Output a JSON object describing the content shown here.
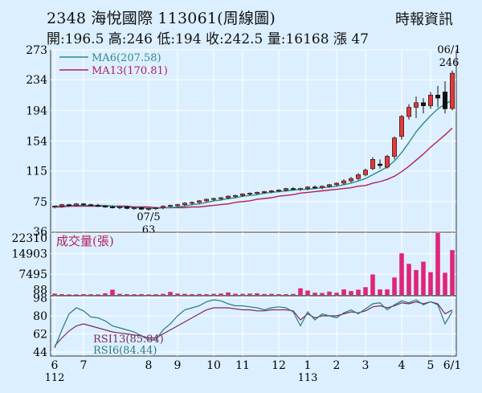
{
  "header": {
    "title": "2348  海悅國際 113061(周線圖)",
    "source": "時報資訊",
    "stats": "開:196.5 高:246 低:194 收:242.5 量:16168 漲 47"
  },
  "colors": {
    "background": "#dcefff",
    "up": "#e23a3a",
    "down": "#111111",
    "ma6": "#2a8a8a",
    "ma13": "#b0205a",
    "volume": "#e0257a",
    "rsi13": "#7a2a5a",
    "rsi6": "#2a7a7a",
    "grid": "#ffffff"
  },
  "chart_data": [
    {
      "type": "candlestick",
      "title": "",
      "yticks": [
        36,
        75,
        115,
        154,
        194,
        234,
        273
      ],
      "ylim": [
        36,
        273
      ],
      "legend": [
        {
          "label": "MA6(207.58)",
          "color": "#2a8a8a"
        },
        {
          "label": "MA13(170.81)",
          "color": "#b0205a"
        }
      ],
      "annotations": [
        {
          "text": "07/5",
          "at": 13
        },
        {
          "text": "63",
          "at": 13
        },
        {
          "text": "06/1",
          "at": 55
        },
        {
          "text": "246",
          "at": 55
        }
      ],
      "candles": [
        [
          68,
          70,
          66,
          69
        ],
        [
          69,
          72,
          67,
          71
        ],
        [
          71,
          72,
          68,
          70
        ],
        [
          70,
          73,
          69,
          72
        ],
        [
          72,
          73,
          70,
          71
        ],
        [
          71,
          72,
          69,
          70
        ],
        [
          70,
          72,
          68,
          69
        ],
        [
          69,
          70,
          67,
          68
        ],
        [
          68,
          70,
          66,
          67
        ],
        [
          67,
          69,
          65,
          68
        ],
        [
          68,
          69,
          65,
          66
        ],
        [
          66,
          68,
          64,
          67
        ],
        [
          67,
          68,
          64,
          65
        ],
        [
          65,
          67,
          63,
          66
        ],
        [
          66,
          68,
          64,
          67
        ],
        [
          67,
          70,
          65,
          69
        ],
        [
          69,
          71,
          67,
          70
        ],
        [
          70,
          72,
          68,
          71
        ],
        [
          71,
          74,
          69,
          73
        ],
        [
          73,
          75,
          71,
          74
        ],
        [
          74,
          77,
          72,
          76
        ],
        [
          76,
          79,
          74,
          78
        ],
        [
          78,
          80,
          76,
          79
        ],
        [
          79,
          81,
          77,
          80
        ],
        [
          80,
          83,
          78,
          82
        ],
        [
          82,
          84,
          80,
          83
        ],
        [
          83,
          86,
          81,
          85
        ],
        [
          85,
          87,
          83,
          86
        ],
        [
          86,
          88,
          84,
          87
        ],
        [
          87,
          89,
          85,
          88
        ],
        [
          88,
          90,
          86,
          89
        ],
        [
          89,
          91,
          87,
          90
        ],
        [
          90,
          93,
          88,
          92
        ],
        [
          92,
          94,
          90,
          91
        ],
        [
          91,
          93,
          89,
          92
        ],
        [
          92,
          95,
          90,
          94
        ],
        [
          94,
          96,
          92,
          93
        ],
        [
          93,
          96,
          91,
          95
        ],
        [
          95,
          98,
          93,
          97
        ],
        [
          97,
          100,
          95,
          99
        ],
        [
          99,
          104,
          97,
          102
        ],
        [
          102,
          107,
          100,
          105
        ],
        [
          105,
          112,
          103,
          110
        ],
        [
          110,
          118,
          108,
          116
        ],
        [
          118,
          133,
          116,
          130
        ],
        [
          124,
          130,
          118,
          122
        ],
        [
          120,
          136,
          118,
          134
        ],
        [
          134,
          160,
          130,
          158
        ],
        [
          160,
          188,
          156,
          186
        ],
        [
          186,
          202,
          182,
          198
        ],
        [
          198,
          212,
          184,
          204
        ],
        [
          204,
          210,
          190,
          200
        ],
        [
          200,
          218,
          196,
          214
        ],
        [
          214,
          226,
          198,
          210
        ],
        [
          218,
          232,
          190,
          196
        ],
        [
          196.5,
          246,
          194,
          242.5
        ]
      ],
      "ma6": [
        69,
        69,
        70,
        70,
        70,
        70,
        70,
        70,
        69,
        68,
        68,
        67,
        67,
        66,
        66,
        67,
        67,
        68,
        69,
        71,
        72,
        74,
        76,
        77,
        79,
        80,
        82,
        83,
        84,
        86,
        87,
        88,
        89,
        90,
        91,
        91,
        92,
        93,
        94,
        95,
        97,
        99,
        102,
        105,
        110,
        115,
        120,
        128,
        139,
        152,
        166,
        177,
        187,
        196,
        202,
        207.58
      ],
      "ma13": [
        68,
        68,
        69,
        69,
        69,
        69,
        69,
        69,
        69,
        69,
        69,
        68,
        68,
        68,
        67,
        67,
        67,
        67,
        67,
        68,
        68,
        69,
        70,
        71,
        72,
        74,
        75,
        76,
        78,
        79,
        80,
        82,
        83,
        84,
        86,
        87,
        88,
        89,
        90,
        91,
        92,
        93,
        95,
        96,
        99,
        101,
        104,
        108,
        114,
        121,
        129,
        137,
        146,
        154,
        162,
        170.81
      ]
    },
    {
      "type": "bar",
      "title": "成交量(張)",
      "yticks": [
        88,
        7495,
        14903,
        22310
      ],
      "ylim": [
        0,
        22310
      ],
      "values": [
        500,
        300,
        200,
        200,
        300,
        250,
        200,
        600,
        1900,
        400,
        300,
        250,
        300,
        200,
        250,
        400,
        1100,
        500,
        400,
        300,
        350,
        300,
        400,
        500,
        900,
        450,
        400,
        500,
        600,
        350,
        400,
        300,
        300,
        350,
        2400,
        1600,
        800,
        700,
        1200,
        800,
        2000,
        1400,
        1900,
        2800,
        7400,
        2000,
        2000,
        6300,
        15000,
        11200,
        9000,
        12000,
        8200,
        22310,
        8000,
        16168
      ]
    },
    {
      "type": "line",
      "title": "",
      "yticks": [
        44,
        62,
        80,
        98
      ],
      "ylim": [
        40,
        100
      ],
      "legend": [
        {
          "label": "RSI13(85.84)",
          "color": "#7a2a5a"
        },
        {
          "label": "RSI6(84.44)",
          "color": "#2a7a7a"
        }
      ],
      "xticks": [
        {
          "label": "6",
          "at": 0
        },
        {
          "label": "7",
          "at": 4
        },
        {
          "label": "8",
          "at": 13
        },
        {
          "label": "9",
          "at": 17
        },
        {
          "label": "10",
          "at": 22
        },
        {
          "label": "11",
          "at": 26
        },
        {
          "label": "12",
          "at": 31
        },
        {
          "label": "1",
          "at": 35
        },
        {
          "label": "2",
          "at": 39
        },
        {
          "label": "3",
          "at": 43
        },
        {
          "label": "4",
          "at": 48
        },
        {
          "label": "5",
          "at": 52
        },
        {
          "label": "6/1",
          "at": 55
        }
      ],
      "year_labels": [
        {
          "label": "112",
          "at": 0
        },
        {
          "label": "113",
          "at": 35
        }
      ],
      "series": [
        {
          "name": "RSI13",
          "values": [
            50,
            58,
            65,
            70,
            72,
            70,
            68,
            66,
            64,
            63,
            62,
            61,
            60,
            58,
            58,
            62,
            66,
            70,
            74,
            78,
            82,
            86,
            88,
            88,
            88,
            87,
            86,
            86,
            85,
            85,
            86,
            86,
            86,
            85,
            76,
            82,
            78,
            80,
            80,
            80,
            82,
            84,
            83,
            85,
            89,
            90,
            88,
            90,
            93,
            92,
            94,
            92,
            94,
            92,
            82,
            85.84
          ]
        },
        {
          "name": "RSI6",
          "values": [
            48,
            66,
            82,
            88,
            85,
            79,
            78,
            75,
            70,
            68,
            66,
            64,
            60,
            56,
            56,
            66,
            72,
            80,
            86,
            88,
            90,
            94,
            96,
            95,
            92,
            90,
            90,
            89,
            88,
            86,
            88,
            89,
            88,
            84,
            70,
            84,
            76,
            82,
            80,
            78,
            83,
            86,
            82,
            87,
            92,
            93,
            86,
            91,
            95,
            93,
            96,
            91,
            94,
            91,
            72,
            84.44
          ]
        }
      ]
    }
  ]
}
